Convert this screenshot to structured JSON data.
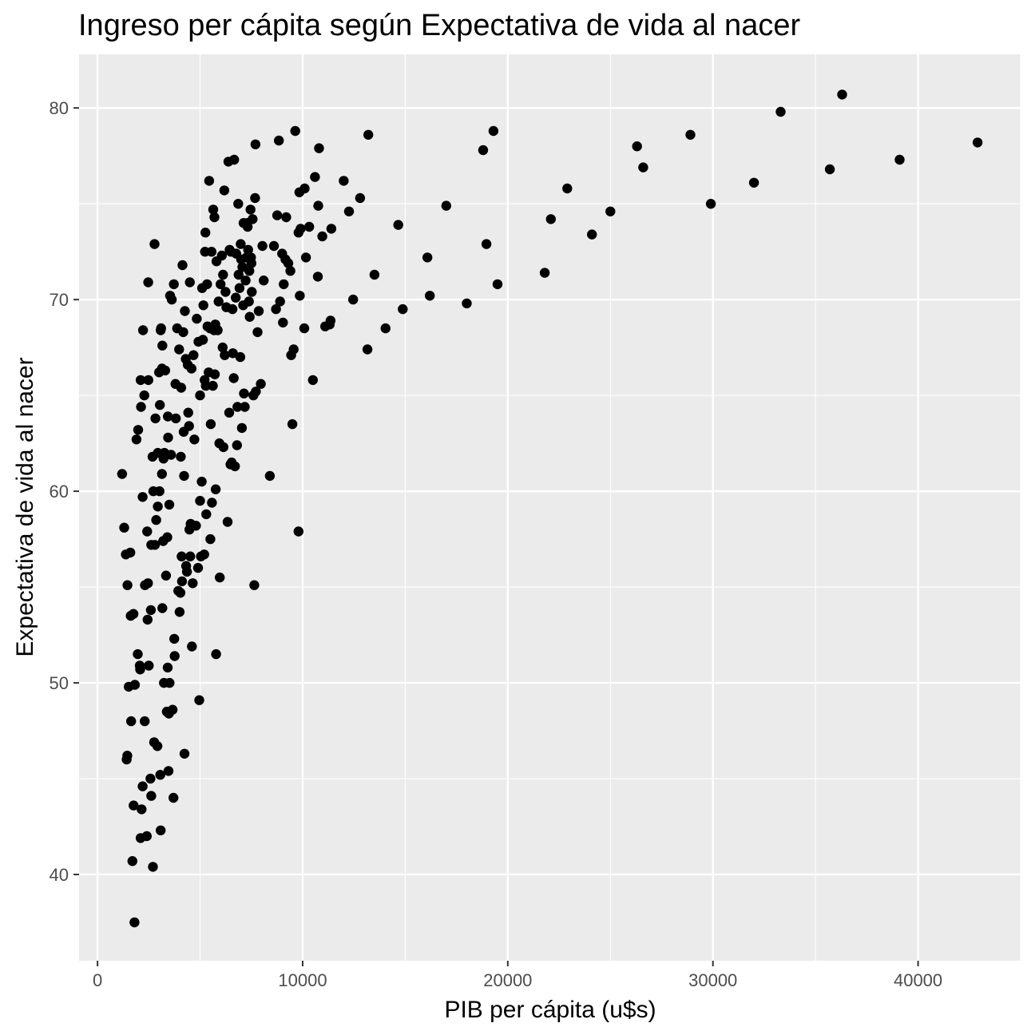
{
  "chart_data": {
    "type": "scatter",
    "title": "Ingreso per cápita según Expectativa de vida al nacer",
    "xlabel": "PIB per cápita (u$s)",
    "ylabel": "Expectativa de vida al nacer",
    "xlim": [
      -900,
      45000
    ],
    "ylim": [
      35.5,
      82.8
    ],
    "x_ticks": [
      0,
      10000,
      20000,
      30000,
      40000
    ],
    "x_tick_labels": [
      "0",
      "10000",
      "20000",
      "30000",
      "40000"
    ],
    "y_ticks": [
      40,
      50,
      60,
      70,
      80
    ],
    "y_tick_labels": [
      "40",
      "50",
      "60",
      "70",
      "80"
    ],
    "grid": true,
    "legend": "none",
    "colors": {
      "panel": "#ebebeb",
      "grid": "#ffffff",
      "point": "#000000",
      "tick": "#4d4d4d"
    },
    "points": [
      [
        1200,
        60.9
      ],
      [
        1300,
        58.1
      ],
      [
        1380,
        56.7
      ],
      [
        1420,
        46.0
      ],
      [
        1450,
        46.2
      ],
      [
        1460,
        55.1
      ],
      [
        1520,
        49.8
      ],
      [
        1600,
        56.8
      ],
      [
        1620,
        53.5
      ],
      [
        1640,
        48.0
      ],
      [
        1700,
        40.7
      ],
      [
        1750,
        53.6
      ],
      [
        1760,
        43.6
      ],
      [
        1800,
        37.5
      ],
      [
        1820,
        49.9
      ],
      [
        1900,
        62.7
      ],
      [
        1960,
        51.5
      ],
      [
        1980,
        63.2
      ],
      [
        2060,
        50.9
      ],
      [
        2080,
        50.7
      ],
      [
        2100,
        41.9
      ],
      [
        2100,
        65.8
      ],
      [
        2120,
        64.4
      ],
      [
        2150,
        43.4
      ],
      [
        2200,
        44.6
      ],
      [
        2200,
        59.7
      ],
      [
        2220,
        68.4
      ],
      [
        2280,
        65.0
      ],
      [
        2300,
        48.0
      ],
      [
        2310,
        55.1
      ],
      [
        2400,
        42.0
      ],
      [
        2420,
        57.9
      ],
      [
        2440,
        53.3
      ],
      [
        2460,
        55.2
      ],
      [
        2470,
        70.9
      ],
      [
        2480,
        65.8
      ],
      [
        2500,
        50.9
      ],
      [
        2580,
        45.0
      ],
      [
        2600,
        53.8
      ],
      [
        2620,
        57.2
      ],
      [
        2620,
        44.1
      ],
      [
        2680,
        61.8
      ],
      [
        2700,
        40.4
      ],
      [
        2720,
        60.0
      ],
      [
        2760,
        46.9
      ],
      [
        2780,
        72.9
      ],
      [
        2800,
        57.2
      ],
      [
        2820,
        63.8
      ],
      [
        2860,
        58.5
      ],
      [
        2920,
        46.7
      ],
      [
        2940,
        62.0
      ],
      [
        2940,
        59.2
      ],
      [
        3000,
        66.2
      ],
      [
        3020,
        60.0
      ],
      [
        3040,
        64.5
      ],
      [
        3060,
        45.2
      ],
      [
        3080,
        68.4
      ],
      [
        3080,
        42.3
      ],
      [
        3100,
        68.5
      ],
      [
        3140,
        66.4
      ],
      [
        3140,
        60.9
      ],
      [
        3160,
        53.9
      ],
      [
        3160,
        67.6
      ],
      [
        3200,
        57.4
      ],
      [
        3220,
        61.7
      ],
      [
        3240,
        50.0
      ],
      [
        3260,
        62.0
      ],
      [
        3300,
        66.3
      ],
      [
        3340,
        55.6
      ],
      [
        3380,
        48.5
      ],
      [
        3400,
        57.6
      ],
      [
        3420,
        50.8
      ],
      [
        3430,
        63.9
      ],
      [
        3440,
        62.8
      ],
      [
        3460,
        45.4
      ],
      [
        3480,
        48.4
      ],
      [
        3500,
        59.3
      ],
      [
        3510,
        50.0
      ],
      [
        3540,
        70.2
      ],
      [
        3580,
        61.9
      ],
      [
        3620,
        70.0
      ],
      [
        3660,
        48.6
      ],
      [
        3700,
        44.0
      ],
      [
        3720,
        70.8
      ],
      [
        3740,
        52.3
      ],
      [
        3760,
        51.4
      ],
      [
        3800,
        65.6
      ],
      [
        3820,
        63.8
      ],
      [
        3880,
        68.5
      ],
      [
        3940,
        54.8
      ],
      [
        3980,
        67.4
      ],
      [
        4000,
        53.7
      ],
      [
        4040,
        54.7
      ],
      [
        4060,
        61.8
      ],
      [
        4080,
        65.4
      ],
      [
        4100,
        56.6
      ],
      [
        4120,
        55.3
      ],
      [
        4140,
        71.8
      ],
      [
        4180,
        68.3
      ],
      [
        4200,
        63.1
      ],
      [
        4220,
        60.8
      ],
      [
        4240,
        46.3
      ],
      [
        4260,
        69.4
      ],
      [
        4300,
        66.9
      ],
      [
        4320,
        56.1
      ],
      [
        4360,
        55.8
      ],
      [
        4400,
        66.6
      ],
      [
        4420,
        64.1
      ],
      [
        4460,
        63.4
      ],
      [
        4480,
        58.0
      ],
      [
        4500,
        70.9
      ],
      [
        4520,
        56.6
      ],
      [
        4540,
        58.3
      ],
      [
        4580,
        66.4
      ],
      [
        4600,
        51.9
      ],
      [
        4640,
        55.2
      ],
      [
        4680,
        67.1
      ],
      [
        4720,
        62.7
      ],
      [
        4800,
        58.2
      ],
      [
        4840,
        69.0
      ],
      [
        4900,
        56.0
      ],
      [
        4920,
        67.8
      ],
      [
        4960,
        49.1
      ],
      [
        5000,
        65.0
      ],
      [
        5000,
        59.5
      ],
      [
        5040,
        56.6
      ],
      [
        5080,
        60.5
      ],
      [
        5100,
        70.6
      ],
      [
        5140,
        67.9
      ],
      [
        5160,
        69.7
      ],
      [
        5200,
        56.7
      ],
      [
        5220,
        65.8
      ],
      [
        5240,
        72.5
      ],
      [
        5260,
        73.5
      ],
      [
        5280,
        65.5
      ],
      [
        5300,
        58.8
      ],
      [
        5340,
        70.8
      ],
      [
        5360,
        68.6
      ],
      [
        5420,
        66.2
      ],
      [
        5440,
        76.2
      ],
      [
        5480,
        68.5
      ],
      [
        5500,
        57.5
      ],
      [
        5520,
        63.5
      ],
      [
        5560,
        72.5
      ],
      [
        5580,
        59.4
      ],
      [
        5620,
        65.5
      ],
      [
        5640,
        74.7
      ],
      [
        5680,
        68.4
      ],
      [
        5700,
        74.3
      ],
      [
        5720,
        66.1
      ],
      [
        5740,
        68.7
      ],
      [
        5760,
        60.1
      ],
      [
        5780,
        51.5
      ],
      [
        5800,
        72.0
      ],
      [
        5860,
        68.4
      ],
      [
        5900,
        69.9
      ],
      [
        5940,
        62.5
      ],
      [
        5960,
        55.5
      ],
      [
        6000,
        70.8
      ],
      [
        6060,
        72.3
      ],
      [
        6100,
        67.5
      ],
      [
        6120,
        71.3
      ],
      [
        6140,
        62.3
      ],
      [
        6180,
        75.7
      ],
      [
        6200,
        67.1
      ],
      [
        6240,
        70.4
      ],
      [
        6280,
        69.6
      ],
      [
        6340,
        58.4
      ],
      [
        6380,
        77.2
      ],
      [
        6420,
        64.1
      ],
      [
        6440,
        72.6
      ],
      [
        6480,
        61.4
      ],
      [
        6500,
        72.5
      ],
      [
        6540,
        61.5
      ],
      [
        6580,
        69.5
      ],
      [
        6600,
        67.2
      ],
      [
        6640,
        65.9
      ],
      [
        6660,
        77.3
      ],
      [
        6700,
        61.3
      ],
      [
        6740,
        70.1
      ],
      [
        6760,
        72.4
      ],
      [
        6800,
        62.4
      ],
      [
        6820,
        64.4
      ],
      [
        6860,
        75.0
      ],
      [
        6880,
        71.3
      ],
      [
        6920,
        70.6
      ],
      [
        6960,
        67.0
      ],
      [
        6980,
        72.9
      ],
      [
        7000,
        72.1
      ],
      [
        7040,
        63.3
      ],
      [
        7060,
        71.7
      ],
      [
        7100,
        69.7
      ],
      [
        7120,
        74.0
      ],
      [
        7140,
        65.1
      ],
      [
        7180,
        64.4
      ],
      [
        7220,
        71.0
      ],
      [
        7260,
        72.2
      ],
      [
        7300,
        74.0
      ],
      [
        7320,
        73.8
      ],
      [
        7340,
        72.6
      ],
      [
        7380,
        69.9
      ],
      [
        7400,
        71.5
      ],
      [
        7420,
        69.1
      ],
      [
        7460,
        74.7
      ],
      [
        7480,
        72.2
      ],
      [
        7500,
        71.9
      ],
      [
        7520,
        70.4
      ],
      [
        7560,
        74.2
      ],
      [
        7600,
        65.0
      ],
      [
        7640,
        55.1
      ],
      [
        7680,
        75.3
      ],
      [
        7700,
        78.1
      ],
      [
        7720,
        65.2
      ],
      [
        7800,
        68.3
      ],
      [
        7860,
        69.4
      ],
      [
        7960,
        65.6
      ],
      [
        8040,
        72.8
      ],
      [
        8100,
        71.0
      ],
      [
        8400,
        60.8
      ],
      [
        8600,
        72.8
      ],
      [
        8700,
        69.5
      ],
      [
        8760,
        74.4
      ],
      [
        8840,
        78.3
      ],
      [
        8900,
        69.9
      ],
      [
        9000,
        72.4
      ],
      [
        9040,
        68.8
      ],
      [
        9080,
        70.8
      ],
      [
        9160,
        72.1
      ],
      [
        9200,
        74.3
      ],
      [
        9300,
        71.9
      ],
      [
        9400,
        71.5
      ],
      [
        9440,
        67.1
      ],
      [
        9500,
        63.5
      ],
      [
        9560,
        67.4
      ],
      [
        9640,
        78.8
      ],
      [
        9800,
        73.5
      ],
      [
        9800,
        57.9
      ],
      [
        9840,
        75.6
      ],
      [
        9860,
        70.2
      ],
      [
        9900,
        73.7
      ],
      [
        10080,
        68.5
      ],
      [
        10100,
        75.8
      ],
      [
        10160,
        72.2
      ],
      [
        10320,
        73.8
      ],
      [
        10500,
        65.8
      ],
      [
        10600,
        76.4
      ],
      [
        10740,
        71.2
      ],
      [
        10760,
        74.9
      ],
      [
        10800,
        77.9
      ],
      [
        10960,
        73.3
      ],
      [
        11100,
        68.6
      ],
      [
        11320,
        68.7
      ],
      [
        11360,
        68.9
      ],
      [
        11400,
        73.7
      ],
      [
        12000,
        76.2
      ],
      [
        12260,
        74.6
      ],
      [
        12460,
        70.0
      ],
      [
        12800,
        75.3
      ],
      [
        13160,
        67.4
      ],
      [
        13200,
        78.6
      ],
      [
        13500,
        71.3
      ],
      [
        14040,
        68.5
      ],
      [
        14660,
        73.9
      ],
      [
        14880,
        69.5
      ],
      [
        16080,
        72.2
      ],
      [
        16200,
        70.2
      ],
      [
        17000,
        74.9
      ],
      [
        18000,
        69.8
      ],
      [
        18800,
        77.8
      ],
      [
        18960,
        72.9
      ],
      [
        19300,
        78.8
      ],
      [
        19500,
        70.8
      ],
      [
        21800,
        71.4
      ],
      [
        22100,
        74.2
      ],
      [
        22900,
        75.8
      ],
      [
        24100,
        73.4
      ],
      [
        25000,
        74.6
      ],
      [
        26300,
        78.0
      ],
      [
        26600,
        76.9
      ],
      [
        28900,
        78.6
      ],
      [
        29900,
        75.0
      ],
      [
        32000,
        76.1
      ],
      [
        33300,
        79.8
      ],
      [
        35700,
        76.8
      ],
      [
        36300,
        80.7
      ],
      [
        39100,
        77.3
      ],
      [
        42900,
        78.2
      ]
    ]
  }
}
